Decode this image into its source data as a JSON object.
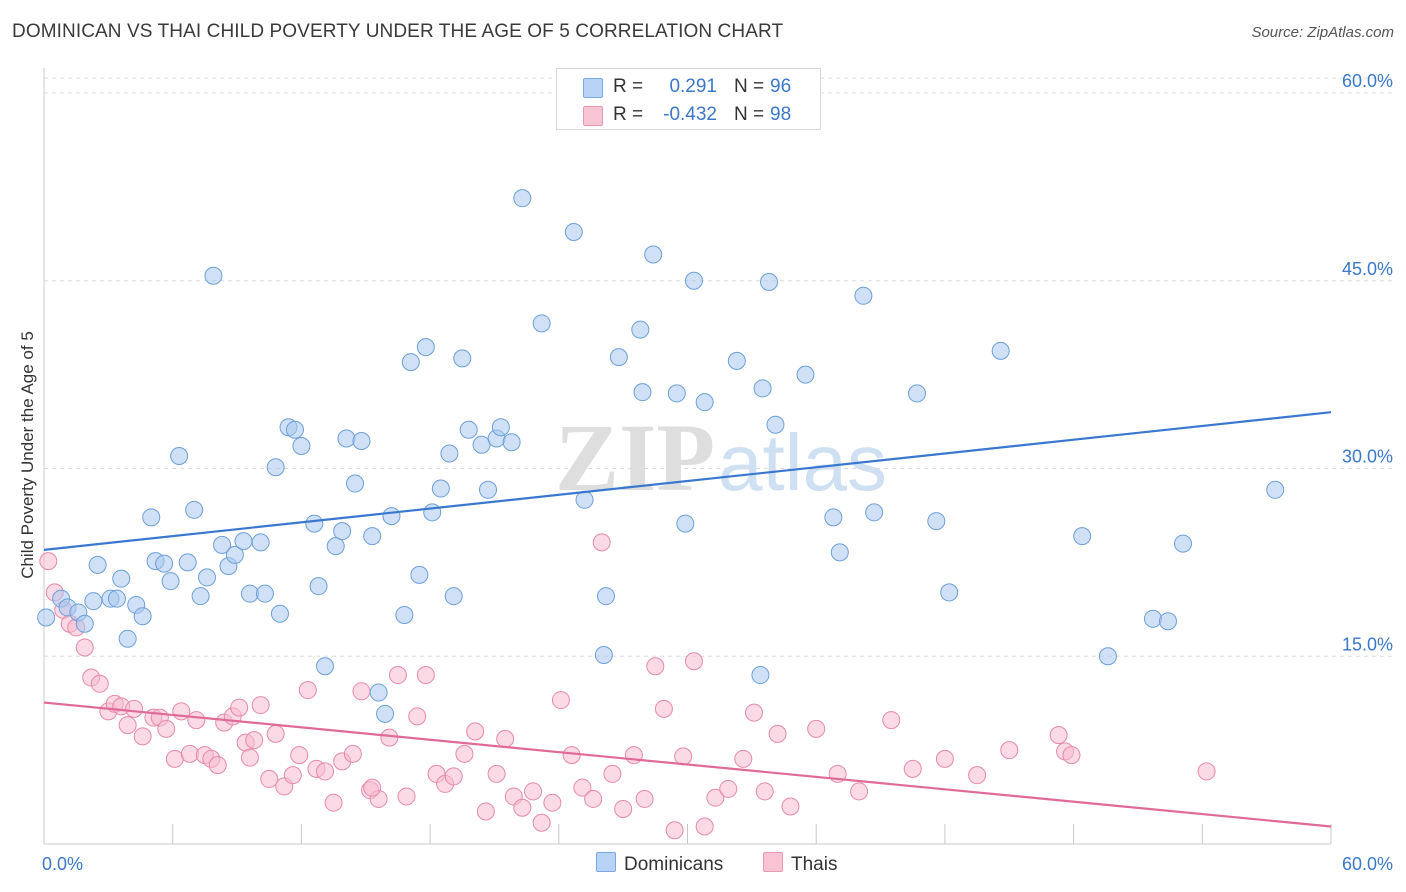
{
  "title": "DOMINICAN VS THAI CHILD POVERTY UNDER THE AGE OF 5 CORRELATION CHART",
  "source": "Source: ZipAtlas.com",
  "watermark": {
    "zip": "ZIP",
    "atlas": "atlas"
  },
  "legend": {
    "rows": [
      {
        "swatch_color": "#b8d3f5",
        "r_label": "R =",
        "r_value": "0.291",
        "n_label": "N =",
        "n_value": "96"
      },
      {
        "swatch_color": "#f8c4d4",
        "r_label": "R =",
        "r_value": "-0.432",
        "n_label": "N =",
        "n_value": "98"
      }
    ]
  },
  "bottom_legend": [
    {
      "label": "Dominicans",
      "swatch_color": "#b8d3f5"
    },
    {
      "label": "Thais",
      "swatch_color": "#f8c4d4"
    }
  ],
  "colors": {
    "blue_fill": "#a9c9f0",
    "blue_stroke": "#6d9fd8",
    "blue_line": "#3a78d0",
    "pink_fill": "#f7bcd0",
    "pink_stroke": "#e58aaa",
    "pink_line": "#e06a98",
    "grid": "#dcdcdc",
    "axis_text": "#3a78c8"
  },
  "chart_data": {
    "type": "scatter",
    "title": "DOMINICAN VS THAI CHILD POVERTY UNDER THE AGE OF 5 CORRELATION CHART",
    "xlabel": "",
    "ylabel": "Child Poverty Under the Age of 5",
    "xlim": [
      0,
      60
    ],
    "ylim": [
      0,
      62
    ],
    "x_tick_labels": [
      "0.0%",
      "60.0%"
    ],
    "y_ticks": [
      15,
      30,
      45,
      60
    ],
    "y_tick_labels": [
      "15.0%",
      "30.0%",
      "45.0%",
      "60.0%"
    ],
    "grid": "horizontal dashed",
    "legend_position": "top-center",
    "series": [
      {
        "name": "Dominicans",
        "r": 0.291,
        "n": 96,
        "trend": [
          [
            0,
            23.5
          ],
          [
            60,
            34.5
          ]
        ],
        "points": [
          [
            0.1,
            18.1
          ],
          [
            0.8,
            19.6
          ],
          [
            1.1,
            18.9
          ],
          [
            1.6,
            18.5
          ],
          [
            1.9,
            17.6
          ],
          [
            2.3,
            19.4
          ],
          [
            2.5,
            22.3
          ],
          [
            3.1,
            19.6
          ],
          [
            3.4,
            19.6
          ],
          [
            3.6,
            21.2
          ],
          [
            3.9,
            16.4
          ],
          [
            4.3,
            19.1
          ],
          [
            4.6,
            18.2
          ],
          [
            5.0,
            26.1
          ],
          [
            5.2,
            22.6
          ],
          [
            5.6,
            22.4
          ],
          [
            5.9,
            21.0
          ],
          [
            6.3,
            31.0
          ],
          [
            6.7,
            22.5
          ],
          [
            7.0,
            26.7
          ],
          [
            7.3,
            19.8
          ],
          [
            7.6,
            21.3
          ],
          [
            7.9,
            45.4
          ],
          [
            8.3,
            23.9
          ],
          [
            8.6,
            22.2
          ],
          [
            8.9,
            23.1
          ],
          [
            9.3,
            24.2
          ],
          [
            9.6,
            20.0
          ],
          [
            10.1,
            24.1
          ],
          [
            10.3,
            20.0
          ],
          [
            10.8,
            30.1
          ],
          [
            11.0,
            18.4
          ],
          [
            11.4,
            33.3
          ],
          [
            11.7,
            33.1
          ],
          [
            12.0,
            31.8
          ],
          [
            12.6,
            25.6
          ],
          [
            12.8,
            20.6
          ],
          [
            13.1,
            14.2
          ],
          [
            13.6,
            23.8
          ],
          [
            13.9,
            25.0
          ],
          [
            14.1,
            32.4
          ],
          [
            14.5,
            28.8
          ],
          [
            14.8,
            32.2
          ],
          [
            15.3,
            24.6
          ],
          [
            15.6,
            12.1
          ],
          [
            15.9,
            10.4
          ],
          [
            16.2,
            26.2
          ],
          [
            16.8,
            18.3
          ],
          [
            17.1,
            38.5
          ],
          [
            17.5,
            21.5
          ],
          [
            17.8,
            39.7
          ],
          [
            18.1,
            26.5
          ],
          [
            18.5,
            28.4
          ],
          [
            18.9,
            31.2
          ],
          [
            19.1,
            19.8
          ],
          [
            19.5,
            38.8
          ],
          [
            19.8,
            33.1
          ],
          [
            20.4,
            31.9
          ],
          [
            20.7,
            28.3
          ],
          [
            21.1,
            32.4
          ],
          [
            21.3,
            33.3
          ],
          [
            21.8,
            32.1
          ],
          [
            22.3,
            51.6
          ],
          [
            23.2,
            41.6
          ],
          [
            25.2,
            27.5
          ],
          [
            24.7,
            48.9
          ],
          [
            26.1,
            15.1
          ],
          [
            26.8,
            38.9
          ],
          [
            27.8,
            41.1
          ],
          [
            27.9,
            36.1
          ],
          [
            28.4,
            47.1
          ],
          [
            29.5,
            36.0
          ],
          [
            29.9,
            25.6
          ],
          [
            30.3,
            45.0
          ],
          [
            30.8,
            35.3
          ],
          [
            32.3,
            38.6
          ],
          [
            33.5,
            36.4
          ],
          [
            33.8,
            44.9
          ],
          [
            33.4,
            13.5
          ],
          [
            34.1,
            33.5
          ],
          [
            35.5,
            37.5
          ],
          [
            36.8,
            26.1
          ],
          [
            37.1,
            23.3
          ],
          [
            38.2,
            43.8
          ],
          [
            38.7,
            26.5
          ],
          [
            40.7,
            36.0
          ],
          [
            41.6,
            25.8
          ],
          [
            42.2,
            20.1
          ],
          [
            44.6,
            39.4
          ],
          [
            48.4,
            24.6
          ],
          [
            49.6,
            15.0
          ],
          [
            51.7,
            18.0
          ],
          [
            52.4,
            17.8
          ],
          [
            53.1,
            24.0
          ],
          [
            57.4,
            28.3
          ],
          [
            26.2,
            19.8
          ]
        ]
      },
      {
        "name": "Thais",
        "r": -0.432,
        "n": 98,
        "trend": [
          [
            0,
            11.3
          ],
          [
            60,
            1.4
          ]
        ],
        "points": [
          [
            0.2,
            22.6
          ],
          [
            0.5,
            20.1
          ],
          [
            0.9,
            18.7
          ],
          [
            1.2,
            17.6
          ],
          [
            1.5,
            17.3
          ],
          [
            1.9,
            15.7
          ],
          [
            2.2,
            13.3
          ],
          [
            2.6,
            12.8
          ],
          [
            3.0,
            10.6
          ],
          [
            3.3,
            11.2
          ],
          [
            3.6,
            11.0
          ],
          [
            3.9,
            9.5
          ],
          [
            4.2,
            10.8
          ],
          [
            4.6,
            8.6
          ],
          [
            5.1,
            10.1
          ],
          [
            5.4,
            10.1
          ],
          [
            5.7,
            9.2
          ],
          [
            6.1,
            6.8
          ],
          [
            6.4,
            10.6
          ],
          [
            6.8,
            7.2
          ],
          [
            7.1,
            9.9
          ],
          [
            7.5,
            7.1
          ],
          [
            7.8,
            6.8
          ],
          [
            8.1,
            6.3
          ],
          [
            8.4,
            9.7
          ],
          [
            8.8,
            10.2
          ],
          [
            9.1,
            10.9
          ],
          [
            9.4,
            8.1
          ],
          [
            9.8,
            8.3
          ],
          [
            10.1,
            11.1
          ],
          [
            10.5,
            5.2
          ],
          [
            10.8,
            8.8
          ],
          [
            11.2,
            4.6
          ],
          [
            11.6,
            5.5
          ],
          [
            11.9,
            7.1
          ],
          [
            12.3,
            12.3
          ],
          [
            12.7,
            6.0
          ],
          [
            13.1,
            5.8
          ],
          [
            13.5,
            3.3
          ],
          [
            13.9,
            6.6
          ],
          [
            14.4,
            7.2
          ],
          [
            14.8,
            12.2
          ],
          [
            15.2,
            4.3
          ],
          [
            15.6,
            3.6
          ],
          [
            16.1,
            8.5
          ],
          [
            16.5,
            13.5
          ],
          [
            16.9,
            3.8
          ],
          [
            17.4,
            10.2
          ],
          [
            17.8,
            13.5
          ],
          [
            18.3,
            5.6
          ],
          [
            18.7,
            4.8
          ],
          [
            19.1,
            5.4
          ],
          [
            19.6,
            7.2
          ],
          [
            20.1,
            9.0
          ],
          [
            20.6,
            2.6
          ],
          [
            21.1,
            5.6
          ],
          [
            21.5,
            8.4
          ],
          [
            21.9,
            3.8
          ],
          [
            22.3,
            2.9
          ],
          [
            22.8,
            4.2
          ],
          [
            23.2,
            1.7
          ],
          [
            23.7,
            3.3
          ],
          [
            24.1,
            11.5
          ],
          [
            24.6,
            7.1
          ],
          [
            25.1,
            4.5
          ],
          [
            25.6,
            3.6
          ],
          [
            26.0,
            24.1
          ],
          [
            26.5,
            5.6
          ],
          [
            27.0,
            2.8
          ],
          [
            27.5,
            7.1
          ],
          [
            28.0,
            3.6
          ],
          [
            28.5,
            14.2
          ],
          [
            28.9,
            10.8
          ],
          [
            29.4,
            1.1
          ],
          [
            29.8,
            7.0
          ],
          [
            30.3,
            14.6
          ],
          [
            30.8,
            1.4
          ],
          [
            31.3,
            3.7
          ],
          [
            31.9,
            4.4
          ],
          [
            32.6,
            6.8
          ],
          [
            33.1,
            10.5
          ],
          [
            33.6,
            4.2
          ],
          [
            34.2,
            8.8
          ],
          [
            34.8,
            3.0
          ],
          [
            36.0,
            9.2
          ],
          [
            37.0,
            5.6
          ],
          [
            38.0,
            4.2
          ],
          [
            39.5,
            9.9
          ],
          [
            40.5,
            6.0
          ],
          [
            42.0,
            6.8
          ],
          [
            43.5,
            5.5
          ],
          [
            45.0,
            7.5
          ],
          [
            47.3,
            8.7
          ],
          [
            47.6,
            7.4
          ],
          [
            47.9,
            7.1
          ],
          [
            54.2,
            5.8
          ],
          [
            15.3,
            4.5
          ],
          [
            9.6,
            6.9
          ]
        ]
      }
    ]
  }
}
